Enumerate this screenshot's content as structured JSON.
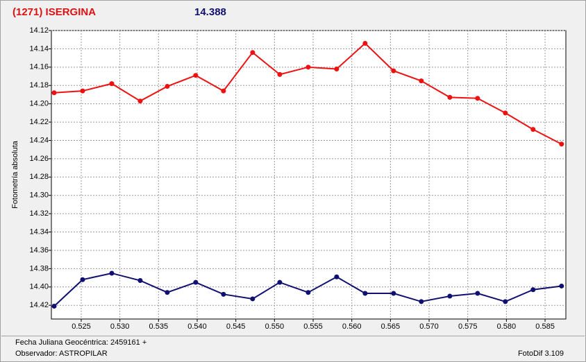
{
  "chart_data": {
    "type": "line",
    "title": "(1271) ISERGINA",
    "subtitle": "14.388",
    "y_label": "Fotometría absoluta",
    "x_label": "Fecha Juliana Geocéntrica: 2459161 +",
    "observer": "Observador: ASTROPILAR",
    "software": "FotoDif 3.109",
    "x": [
      0.5215,
      0.52518,
      0.52895,
      0.53263,
      0.53613,
      0.53981,
      0.5434,
      0.54717,
      0.55068,
      0.55436,
      0.55804,
      0.56172,
      0.5654,
      0.56899,
      0.57268,
      0.57627,
      0.57986,
      0.58345,
      0.58713
    ],
    "series": [
      {
        "color": "#ee1111",
        "values": [
          14.188,
          14.186,
          14.178,
          14.197,
          14.181,
          14.169,
          14.186,
          14.144,
          14.168,
          14.16,
          14.162,
          14.134,
          14.164,
          14.175,
          14.193,
          14.194,
          14.21,
          14.228,
          14.244
        ]
      },
      {
        "color": "#101070",
        "values": [
          14.421,
          14.392,
          14.385,
          14.393,
          14.406,
          14.395,
          14.408,
          14.413,
          14.395,
          14.406,
          14.389,
          14.407,
          14.407,
          14.416,
          14.41,
          14.407,
          14.416,
          14.403,
          14.399
        ]
      }
    ],
    "xlim": [
      0.52114,
      0.58769
    ],
    "xticks": [
      0.525,
      {
        "value": 0.53,
        "label": "0.530"
      },
      0.535,
      {
        "value": 0.54,
        "label": "0.540"
      },
      0.545,
      {
        "value": 0.55,
        "label": "0.550"
      },
      0.555,
      {
        "value": 0.56,
        "label": "0.560"
      },
      0.565,
      {
        "value": 0.57,
        "label": "0.570"
      },
      0.575,
      {
        "value": 0.58,
        "label": "0.580"
      },
      0.585
    ],
    "ylim": [
      14.435,
      14.12
    ],
    "yticks": [
      14.12,
      14.14,
      14.16,
      14.18,
      {
        "value": 14.2,
        "label": "14.20"
      },
      14.22,
      14.24,
      14.26,
      14.28,
      {
        "value": 14.3,
        "label": "14.30"
      },
      14.32,
      14.34,
      14.36,
      14.38,
      {
        "value": 14.4,
        "label": "14.40"
      },
      14.42
    ],
    "grid": true
  }
}
